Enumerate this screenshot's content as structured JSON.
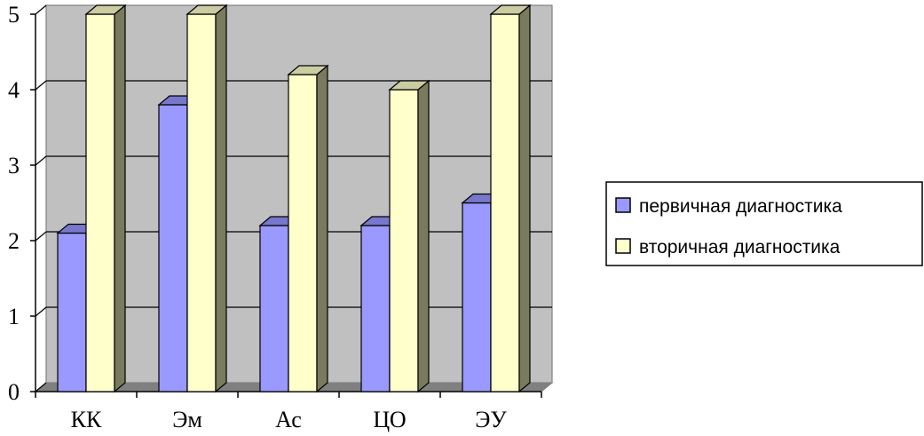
{
  "chart_data": {
    "type": "bar",
    "style": "3d-clustered-column",
    "categories": [
      "КК",
      "Эм",
      "Ас",
      "ЦО",
      "ЭУ"
    ],
    "series": [
      {
        "name": "первичная диагностика",
        "values": [
          2.1,
          3.8,
          2.2,
          2.2,
          2.5
        ],
        "color": "#9999FF",
        "side_color": "#4D4D99",
        "top_color": "#7777CC"
      },
      {
        "name": "вторичная диагностика",
        "values": [
          5,
          5,
          4.2,
          4,
          5
        ],
        "color": "#FFFFCC",
        "side_color": "#7A7A5E",
        "top_color": "#CCCCA3"
      }
    ],
    "title": "",
    "xlabel": "",
    "ylabel": "",
    "ylim": [
      0,
      5
    ],
    "yticks": [
      "0",
      "1",
      "2",
      "3",
      "4",
      "5"
    ],
    "grid": true,
    "wall_color": "#C0C0C0",
    "floor_color": "#808080",
    "legend_position": "right"
  }
}
